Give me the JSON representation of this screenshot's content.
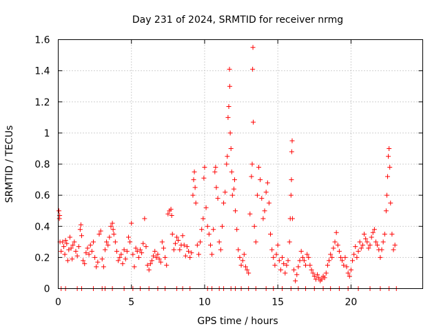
{
  "chart_data": {
    "type": "scatter",
    "title": "Day 231 of 2024, SRMTID for receiver nrmg",
    "xlabel": "GPS time / hours",
    "ylabel": "SRMTID / TECUs",
    "xlim": [
      0,
      24.9
    ],
    "ylim": [
      0,
      1.6
    ],
    "xticks": [
      0,
      5,
      10,
      15,
      20
    ],
    "xtick_labels": [
      "0",
      "5",
      "10",
      "15",
      "20"
    ],
    "yticks": [
      0,
      0.2,
      0.4,
      0.6,
      0.8,
      1,
      1.2,
      1.4,
      1.6
    ],
    "ytick_labels": [
      "0",
      "0.2",
      "0.4",
      "0.6",
      "0.8",
      "1",
      "1.2",
      "1.4",
      "1.6"
    ],
    "grid": true,
    "marker": "+",
    "color": "#ff0000",
    "series": [
      {
        "name": "SRMTID",
        "points": [
          [
            0.05,
            0.5
          ],
          [
            0.08,
            0.45
          ],
          [
            0.1,
            0.47
          ],
          [
            0.12,
            0.3
          ],
          [
            0.2,
            0.24
          ],
          [
            0.3,
            0.3
          ],
          [
            0.38,
            0.27
          ],
          [
            0.45,
            0.22
          ],
          [
            0.5,
            0.31
          ],
          [
            0.58,
            0.29
          ],
          [
            0.65,
            0.18
          ],
          [
            0.72,
            0.25
          ],
          [
            0.8,
            0.33
          ],
          [
            0.88,
            0.26
          ],
          [
            0.95,
            0.19
          ],
          [
            1.0,
            0.28
          ],
          [
            1.1,
            0.3
          ],
          [
            1.2,
            0.24
          ],
          [
            1.3,
            0.21
          ],
          [
            1.4,
            0.27
          ],
          [
            1.5,
            0.38
          ],
          [
            1.55,
            0.41
          ],
          [
            1.6,
            0.34
          ],
          [
            1.7,
            0.18
          ],
          [
            1.8,
            0.16
          ],
          [
            1.9,
            0.23
          ],
          [
            2.0,
            0.26
          ],
          [
            2.1,
            0.22
          ],
          [
            2.2,
            0.28
          ],
          [
            2.3,
            0.24
          ],
          [
            2.4,
            0.3
          ],
          [
            2.5,
            0.2
          ],
          [
            2.6,
            0.14
          ],
          [
            2.7,
            0.17
          ],
          [
            2.8,
            0.35
          ],
          [
            2.9,
            0.37
          ],
          [
            3.0,
            0.19
          ],
          [
            3.1,
            0.14
          ],
          [
            3.2,
            0.25
          ],
          [
            3.3,
            0.3
          ],
          [
            3.4,
            0.28
          ],
          [
            3.5,
            0.33
          ],
          [
            3.6,
            0.4
          ],
          [
            3.7,
            0.42
          ],
          [
            3.75,
            0.38
          ],
          [
            3.8,
            0.35
          ],
          [
            3.9,
            0.3
          ],
          [
            4.0,
            0.24
          ],
          [
            4.1,
            0.18
          ],
          [
            4.2,
            0.2
          ],
          [
            4.3,
            0.22
          ],
          [
            4.4,
            0.16
          ],
          [
            4.5,
            0.25
          ],
          [
            4.6,
            0.19
          ],
          [
            4.7,
            0.24
          ],
          [
            4.8,
            0.33
          ],
          [
            4.9,
            0.3
          ],
          [
            5.0,
            0.42
          ],
          [
            5.1,
            0.22
          ],
          [
            5.2,
            0.14
          ],
          [
            5.3,
            0.26
          ],
          [
            5.4,
            0.24
          ],
          [
            5.5,
            0.2
          ],
          [
            5.6,
            0.25
          ],
          [
            5.7,
            0.23
          ],
          [
            5.8,
            0.29
          ],
          [
            5.9,
            0.45
          ],
          [
            6.0,
            0.27
          ],
          [
            6.1,
            0.15
          ],
          [
            6.2,
            0.12
          ],
          [
            6.3,
            0.16
          ],
          [
            6.4,
            0.18
          ],
          [
            6.5,
            0.21
          ],
          [
            6.6,
            0.24
          ],
          [
            6.7,
            0.2
          ],
          [
            6.8,
            0.22
          ],
          [
            6.9,
            0.19
          ],
          [
            7.0,
            0.17
          ],
          [
            7.1,
            0.3
          ],
          [
            7.2,
            0.26
          ],
          [
            7.3,
            0.2
          ],
          [
            7.4,
            0.15
          ],
          [
            7.5,
            0.48
          ],
          [
            7.6,
            0.5
          ],
          [
            7.7,
            0.51
          ],
          [
            7.75,
            0.47
          ],
          [
            7.8,
            0.35
          ],
          [
            7.9,
            0.25
          ],
          [
            8.0,
            0.29
          ],
          [
            8.1,
            0.33
          ],
          [
            8.2,
            0.31
          ],
          [
            8.3,
            0.25
          ],
          [
            8.4,
            0.28
          ],
          [
            8.5,
            0.34
          ],
          [
            8.6,
            0.28
          ],
          [
            8.7,
            0.21
          ],
          [
            8.8,
            0.27
          ],
          [
            8.9,
            0.24
          ],
          [
            9.0,
            0.2
          ],
          [
            9.1,
            0.23
          ],
          [
            9.2,
            0.6
          ],
          [
            9.25,
            0.7
          ],
          [
            9.3,
            0.75
          ],
          [
            9.35,
            0.65
          ],
          [
            9.4,
            0.55
          ],
          [
            9.5,
            0.28
          ],
          [
            9.6,
            0.22
          ],
          [
            9.7,
            0.3
          ],
          [
            9.8,
            0.38
          ],
          [
            9.9,
            0.45
          ],
          [
            9.95,
            0.71
          ],
          [
            10.0,
            0.78
          ],
          [
            10.1,
            0.52
          ],
          [
            10.2,
            0.4
          ],
          [
            10.3,
            0.35
          ],
          [
            10.4,
            0.28
          ],
          [
            10.5,
            0.22
          ],
          [
            10.6,
            0.38
          ],
          [
            10.7,
            0.75
          ],
          [
            10.75,
            0.78
          ],
          [
            10.8,
            0.65
          ],
          [
            10.9,
            0.58
          ],
          [
            11.0,
            0.3
          ],
          [
            11.1,
            0.25
          ],
          [
            11.2,
            0.4
          ],
          [
            11.3,
            0.55
          ],
          [
            11.4,
            0.62
          ],
          [
            11.5,
            0.8
          ],
          [
            11.55,
            0.85
          ],
          [
            11.6,
            1.1
          ],
          [
            11.65,
            1.17
          ],
          [
            11.7,
            1.41
          ],
          [
            11.72,
            1.3
          ],
          [
            11.75,
            1.0
          ],
          [
            11.8,
            0.9
          ],
          [
            11.85,
            0.75
          ],
          [
            11.9,
            0.6
          ],
          [
            12.0,
            0.64
          ],
          [
            12.05,
            0.7
          ],
          [
            12.1,
            0.5
          ],
          [
            12.2,
            0.38
          ],
          [
            12.3,
            0.25
          ],
          [
            12.4,
            0.2
          ],
          [
            12.5,
            0.15
          ],
          [
            12.6,
            0.18
          ],
          [
            12.7,
            0.22
          ],
          [
            12.8,
            0.14
          ],
          [
            12.9,
            0.12
          ],
          [
            13.0,
            0.1
          ],
          [
            13.1,
            0.48
          ],
          [
            13.2,
            0.72
          ],
          [
            13.25,
            0.8
          ],
          [
            13.28,
            1.41
          ],
          [
            13.3,
            1.55
          ],
          [
            13.32,
            1.07
          ],
          [
            13.4,
            0.4
          ],
          [
            13.5,
            0.3
          ],
          [
            13.6,
            0.6
          ],
          [
            13.7,
            0.78
          ],
          [
            13.8,
            0.7
          ],
          [
            13.9,
            0.58
          ],
          [
            14.0,
            0.45
          ],
          [
            14.1,
            0.5
          ],
          [
            14.2,
            0.62
          ],
          [
            14.3,
            0.68
          ],
          [
            14.4,
            0.55
          ],
          [
            14.5,
            0.35
          ],
          [
            14.6,
            0.25
          ],
          [
            14.7,
            0.2
          ],
          [
            14.8,
            0.15
          ],
          [
            14.9,
            0.22
          ],
          [
            15.0,
            0.28
          ],
          [
            15.1,
            0.18
          ],
          [
            15.2,
            0.12
          ],
          [
            15.3,
            0.2
          ],
          [
            15.4,
            0.16
          ],
          [
            15.5,
            0.1
          ],
          [
            15.6,
            0.15
          ],
          [
            15.7,
            0.18
          ],
          [
            15.8,
            0.3
          ],
          [
            15.85,
            0.45
          ],
          [
            15.9,
            0.6
          ],
          [
            15.93,
            0.7
          ],
          [
            15.95,
            0.88
          ],
          [
            15.98,
            0.95
          ],
          [
            16.0,
            0.45
          ],
          [
            16.1,
            0.12
          ],
          [
            16.2,
            0.05
          ],
          [
            16.3,
            0.09
          ],
          [
            16.4,
            0.14
          ],
          [
            16.5,
            0.18
          ],
          [
            16.6,
            0.24
          ],
          [
            16.7,
            0.2
          ],
          [
            16.8,
            0.18
          ],
          [
            16.9,
            0.15
          ],
          [
            17.0,
            0.22
          ],
          [
            17.1,
            0.2
          ],
          [
            17.2,
            0.15
          ],
          [
            17.3,
            0.12
          ],
          [
            17.4,
            0.1
          ],
          [
            17.5,
            0.08
          ],
          [
            17.6,
            0.06
          ],
          [
            17.7,
            0.09
          ],
          [
            17.8,
            0.07
          ],
          [
            17.9,
            0.05
          ],
          [
            18.0,
            0.06
          ],
          [
            18.1,
            0.08
          ],
          [
            18.2,
            0.07
          ],
          [
            18.3,
            0.1
          ],
          [
            18.4,
            0.15
          ],
          [
            18.5,
            0.18
          ],
          [
            18.6,
            0.22
          ],
          [
            18.7,
            0.2
          ],
          [
            18.8,
            0.26
          ],
          [
            18.9,
            0.3
          ],
          [
            19.0,
            0.36
          ],
          [
            19.1,
            0.28
          ],
          [
            19.2,
            0.24
          ],
          [
            19.3,
            0.2
          ],
          [
            19.4,
            0.18
          ],
          [
            19.5,
            0.15
          ],
          [
            19.6,
            0.2
          ],
          [
            19.7,
            0.14
          ],
          [
            19.8,
            0.1
          ],
          [
            19.9,
            0.08
          ],
          [
            20.0,
            0.12
          ],
          [
            20.1,
            0.18
          ],
          [
            20.2,
            0.22
          ],
          [
            20.3,
            0.27
          ],
          [
            20.4,
            0.2
          ],
          [
            20.5,
            0.24
          ],
          [
            20.6,
            0.3
          ],
          [
            20.7,
            0.26
          ],
          [
            20.8,
            0.28
          ],
          [
            20.9,
            0.35
          ],
          [
            21.0,
            0.32
          ],
          [
            21.1,
            0.3
          ],
          [
            21.2,
            0.26
          ],
          [
            21.3,
            0.28
          ],
          [
            21.4,
            0.33
          ],
          [
            21.5,
            0.36
          ],
          [
            21.6,
            0.38
          ],
          [
            21.7,
            0.3
          ],
          [
            21.8,
            0.28
          ],
          [
            21.9,
            0.25
          ],
          [
            22.0,
            0.2
          ],
          [
            22.1,
            0.25
          ],
          [
            22.2,
            0.3
          ],
          [
            22.3,
            0.35
          ],
          [
            22.4,
            0.5
          ],
          [
            22.45,
            0.6
          ],
          [
            22.5,
            0.72
          ],
          [
            22.55,
            0.85
          ],
          [
            22.6,
            0.9
          ],
          [
            22.65,
            0.78
          ],
          [
            22.7,
            0.55
          ],
          [
            22.8,
            0.35
          ],
          [
            22.9,
            0.25
          ],
          [
            23.0,
            0.28
          ],
          [
            0.2,
            0
          ],
          [
            0.5,
            0
          ],
          [
            1.3,
            0
          ],
          [
            1.6,
            0
          ],
          [
            2.4,
            0
          ],
          [
            3.0,
            0
          ],
          [
            3.2,
            0
          ],
          [
            3.7,
            0
          ],
          [
            4.5,
            0
          ],
          [
            5.1,
            0
          ],
          [
            5.6,
            0
          ],
          [
            6.2,
            0
          ],
          [
            6.8,
            0
          ],
          [
            7.3,
            0
          ],
          [
            8.1,
            0
          ],
          [
            8.5,
            0
          ],
          [
            9.0,
            0
          ],
          [
            10.2,
            0
          ],
          [
            10.5,
            0
          ],
          [
            11.0,
            0
          ],
          [
            11.3,
            0
          ],
          [
            11.8,
            0
          ],
          [
            12.1,
            0
          ],
          [
            12.5,
            0
          ],
          [
            13.0,
            0
          ],
          [
            13.5,
            0
          ],
          [
            14.2,
            0
          ],
          [
            14.7,
            0
          ],
          [
            15.3,
            0
          ],
          [
            15.9,
            0
          ],
          [
            16.4,
            0
          ],
          [
            16.9,
            0
          ],
          [
            17.5,
            0
          ],
          [
            18.1,
            0
          ],
          [
            18.6,
            0
          ],
          [
            19.2,
            0
          ],
          [
            19.8,
            0
          ],
          [
            20.5,
            0
          ],
          [
            21.3,
            0
          ],
          [
            22.0,
            0
          ],
          [
            22.6,
            0
          ],
          [
            23.1,
            0
          ]
        ]
      }
    ]
  }
}
